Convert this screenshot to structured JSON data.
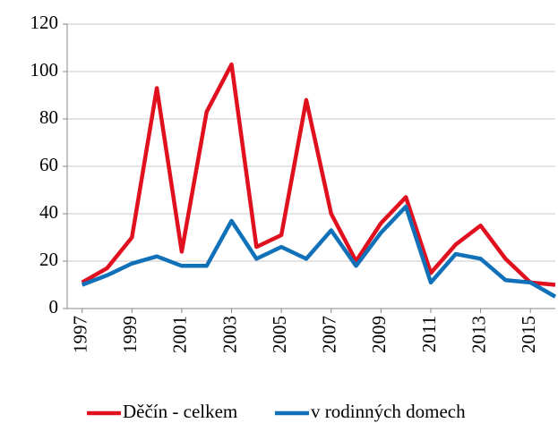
{
  "chart_data": {
    "type": "line",
    "x": [
      1997,
      1998,
      1999,
      2000,
      2001,
      2002,
      2003,
      2004,
      2005,
      2006,
      2007,
      2008,
      2009,
      2010,
      2011,
      2012,
      2013,
      2014,
      2015,
      2016
    ],
    "series": [
      {
        "name": "Děčín - celkem",
        "color": "#e0101e",
        "values": [
          11,
          17,
          30,
          93,
          24,
          83,
          103,
          26,
          31,
          88,
          40,
          20,
          36,
          47,
          15,
          27,
          35,
          21,
          11,
          10
        ]
      },
      {
        "name": "v rodinných domech",
        "color": "#1070b8",
        "values": [
          10,
          14,
          19,
          22,
          18,
          18,
          37,
          21,
          26,
          21,
          33,
          18,
          32,
          43,
          11,
          23,
          21,
          12,
          11,
          5
        ]
      }
    ],
    "xlim": [
      1996.4,
      2016
    ],
    "xticks": [
      1997,
      1999,
      2001,
      2003,
      2005,
      2007,
      2009,
      2011,
      2013,
      2015
    ],
    "ylim": [
      0,
      120
    ],
    "yticks": [
      0,
      20,
      40,
      60,
      80,
      100,
      120
    ],
    "grid": true,
    "legend": "bottom"
  }
}
